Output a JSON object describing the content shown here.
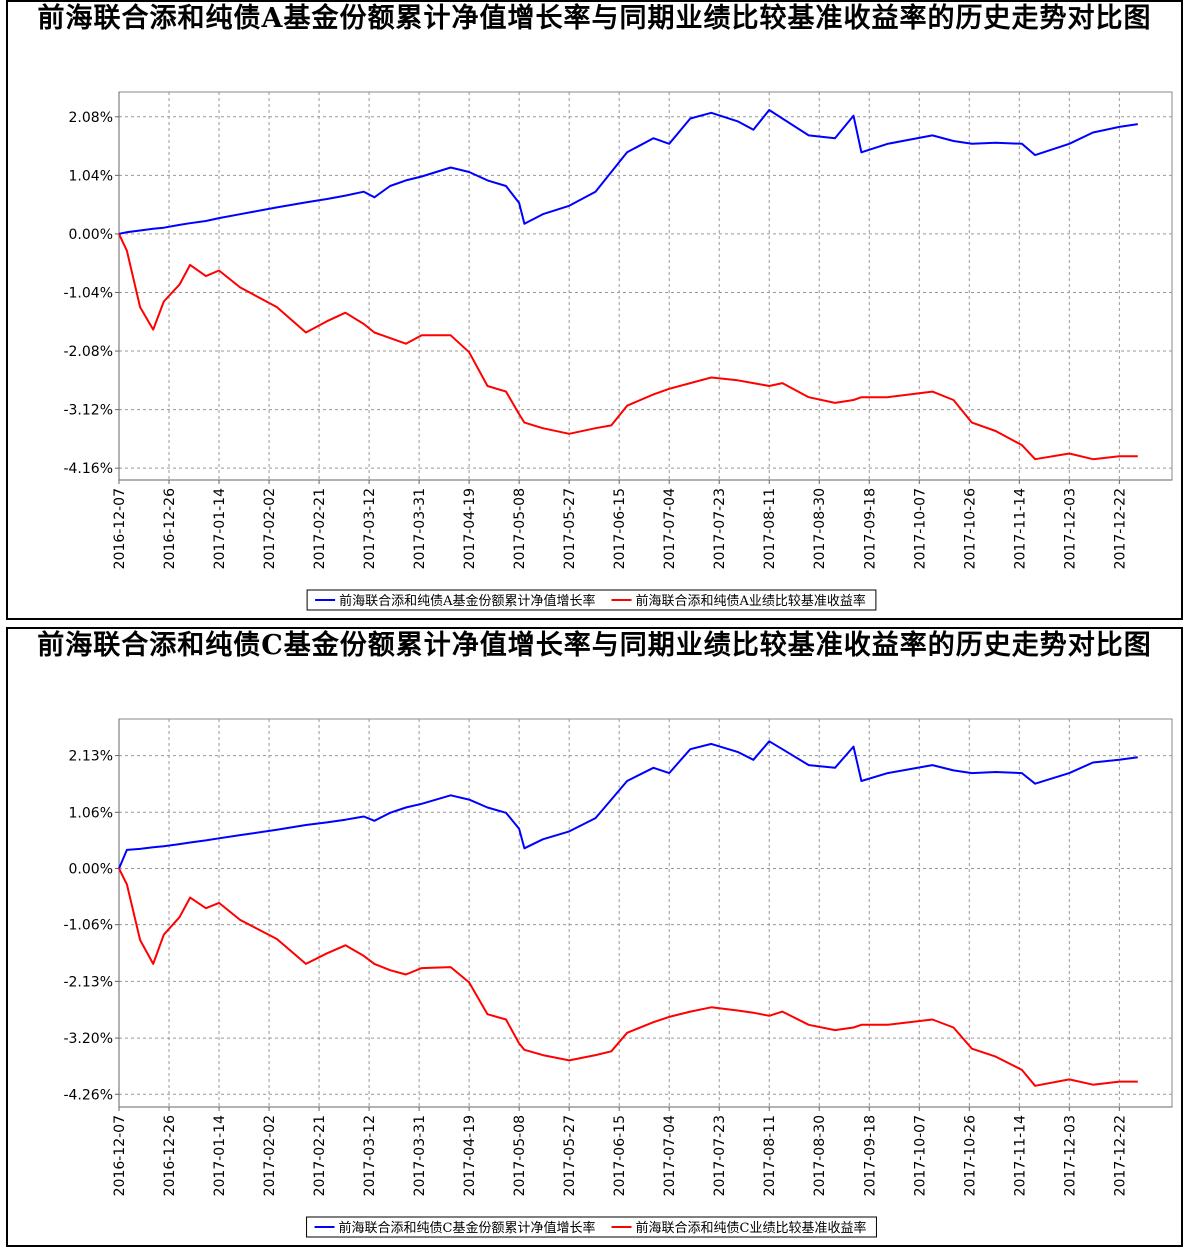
{
  "chart_data": [
    {
      "type": "line",
      "title": "前海联合添和纯债A基金份额累计净值增长率与同期业绩比较基准收益率的历史走势对比图",
      "x": [
        "2016-12-07",
        "2016-12-10",
        "2016-12-15",
        "2016-12-20",
        "2016-12-24",
        "2016-12-30",
        "2017-01-03",
        "2017-01-09",
        "2017-01-14",
        "2017-01-22",
        "2017-02-05",
        "2017-02-16",
        "2017-02-24",
        "2017-03-03",
        "2017-03-10",
        "2017-03-14",
        "2017-03-20",
        "2017-03-26",
        "2017-04-01",
        "2017-04-12",
        "2017-04-19",
        "2017-04-26",
        "2017-05-03",
        "2017-05-08",
        "2017-05-10",
        "2017-05-17",
        "2017-05-27",
        "2017-06-06",
        "2017-06-12",
        "2017-06-18",
        "2017-06-28",
        "2017-07-04",
        "2017-07-12",
        "2017-07-20",
        "2017-07-30",
        "2017-08-05",
        "2017-08-11",
        "2017-08-16",
        "2017-08-26",
        "2017-09-05",
        "2017-09-12",
        "2017-09-15",
        "2017-09-25",
        "2017-10-12",
        "2017-10-20",
        "2017-10-27",
        "2017-11-05",
        "2017-11-15",
        "2017-11-20",
        "2017-12-03",
        "2017-12-12",
        "2017-12-22",
        "2017-12-29"
      ],
      "series": [
        {
          "name": "前海联合添和纯债A基金份额累计净值增长率",
          "color": "#0000ff",
          "values": [
            0.0,
            0.03,
            0.06,
            0.09,
            0.11,
            0.16,
            0.19,
            0.23,
            0.28,
            0.35,
            0.47,
            0.56,
            0.62,
            0.68,
            0.75,
            0.65,
            0.85,
            0.95,
            1.02,
            1.18,
            1.1,
            0.95,
            0.85,
            0.55,
            0.18,
            0.35,
            0.5,
            0.75,
            1.1,
            1.45,
            1.7,
            1.6,
            2.05,
            2.15,
            2.0,
            1.85,
            2.2,
            2.05,
            1.75,
            1.7,
            2.1,
            1.45,
            1.6,
            1.75,
            1.65,
            1.6,
            1.62,
            1.6,
            1.4,
            1.6,
            1.8,
            1.9,
            1.95
          ]
        },
        {
          "name": "前海联合添和纯债A业绩比较基准收益率",
          "color": "#ff0000",
          "values": [
            0.0,
            -0.3,
            -1.3,
            -1.7,
            -1.2,
            -0.9,
            -0.55,
            -0.75,
            -0.65,
            -0.95,
            -1.3,
            -1.75,
            -1.55,
            -1.4,
            -1.6,
            -1.75,
            -1.85,
            -1.95,
            -1.8,
            -1.8,
            -2.1,
            -2.7,
            -2.8,
            -3.2,
            -3.35,
            -3.45,
            -3.55,
            -3.45,
            -3.4,
            -3.05,
            -2.85,
            -2.75,
            -2.65,
            -2.55,
            -2.6,
            -2.65,
            -2.7,
            -2.65,
            -2.9,
            -3.0,
            -2.95,
            -2.9,
            -2.9,
            -2.8,
            -2.95,
            -3.35,
            -3.5,
            -3.75,
            -4.0,
            -3.9,
            -4.0,
            -3.95,
            -3.95
          ]
        }
      ],
      "xlim": [
        "2016-12-07",
        "2018-01-11"
      ],
      "xticks": [
        "2016-12-07",
        "2016-12-26",
        "2017-01-14",
        "2017-02-02",
        "2017-02-21",
        "2017-03-12",
        "2017-03-31",
        "2017-04-19",
        "2017-05-08",
        "2017-05-27",
        "2017-06-15",
        "2017-07-04",
        "2017-07-23",
        "2017-08-11",
        "2017-08-30",
        "2017-09-18",
        "2017-10-07",
        "2017-10-26",
        "2017-11-14",
        "2017-12-03",
        "2017-12-22"
      ],
      "ylim": [
        -4.37,
        2.52
      ],
      "yticks": [
        {
          "value": 2.08,
          "label": "2.08%"
        },
        {
          "value": 1.04,
          "label": "1.04%"
        },
        {
          "value": 0,
          "label": "0.00%"
        },
        {
          "value": -1.04,
          "label": "-1.04%"
        },
        {
          "value": -2.08,
          "label": "-2.08%"
        },
        {
          "value": -3.12,
          "label": "-3.12%"
        },
        {
          "value": -4.16,
          "label": "-4.16%"
        }
      ],
      "grid": true,
      "legend": "bottom"
    },
    {
      "type": "line",
      "title": "前海联合添和纯债C基金份额累计净值增长率与同期业绩比较基准收益率的历史走势对比图",
      "x": [
        "2016-12-07",
        "2016-12-10",
        "2016-12-15",
        "2016-12-20",
        "2016-12-24",
        "2016-12-30",
        "2017-01-03",
        "2017-01-09",
        "2017-01-14",
        "2017-01-22",
        "2017-02-05",
        "2017-02-16",
        "2017-02-24",
        "2017-03-03",
        "2017-03-10",
        "2017-03-14",
        "2017-03-20",
        "2017-03-26",
        "2017-04-01",
        "2017-04-12",
        "2017-04-19",
        "2017-04-26",
        "2017-05-03",
        "2017-05-08",
        "2017-05-10",
        "2017-05-17",
        "2017-05-27",
        "2017-06-06",
        "2017-06-12",
        "2017-06-18",
        "2017-06-28",
        "2017-07-04",
        "2017-07-12",
        "2017-07-20",
        "2017-07-30",
        "2017-08-05",
        "2017-08-11",
        "2017-08-16",
        "2017-08-26",
        "2017-09-05",
        "2017-09-12",
        "2017-09-15",
        "2017-09-25",
        "2017-10-12",
        "2017-10-20",
        "2017-10-27",
        "2017-11-05",
        "2017-11-15",
        "2017-11-20",
        "2017-12-03",
        "2017-12-12",
        "2017-12-22",
        "2017-12-29"
      ],
      "series": [
        {
          "name": "前海联合添和纯债C基金份额累计净值增长率",
          "color": "#0000ff",
          "values": [
            0.0,
            0.35,
            0.37,
            0.4,
            0.42,
            0.46,
            0.49,
            0.53,
            0.57,
            0.63,
            0.73,
            0.82,
            0.87,
            0.92,
            0.98,
            0.9,
            1.05,
            1.15,
            1.22,
            1.38,
            1.3,
            1.15,
            1.05,
            0.75,
            0.38,
            0.55,
            0.7,
            0.95,
            1.3,
            1.65,
            1.9,
            1.8,
            2.25,
            2.35,
            2.2,
            2.05,
            2.4,
            2.25,
            1.95,
            1.9,
            2.3,
            1.65,
            1.8,
            1.95,
            1.85,
            1.8,
            1.82,
            1.8,
            1.6,
            1.8,
            2.0,
            2.05,
            2.1
          ]
        },
        {
          "name": "前海联合添和纯债C业绩比较基准收益率",
          "color": "#ff0000",
          "values": [
            0.0,
            -0.3,
            -1.35,
            -1.8,
            -1.25,
            -0.92,
            -0.55,
            -0.75,
            -0.65,
            -0.97,
            -1.33,
            -1.8,
            -1.6,
            -1.45,
            -1.65,
            -1.8,
            -1.92,
            -2.0,
            -1.88,
            -1.86,
            -2.15,
            -2.75,
            -2.85,
            -3.3,
            -3.42,
            -3.52,
            -3.62,
            -3.52,
            -3.45,
            -3.1,
            -2.9,
            -2.8,
            -2.7,
            -2.62,
            -2.68,
            -2.72,
            -2.78,
            -2.7,
            -2.95,
            -3.05,
            -3.0,
            -2.95,
            -2.95,
            -2.85,
            -3.0,
            -3.4,
            -3.55,
            -3.8,
            -4.1,
            -3.98,
            -4.08,
            -4.02,
            -4.02
          ]
        }
      ],
      "xlim": [
        "2016-12-07",
        "2018-01-11"
      ],
      "xticks": [
        "2016-12-07",
        "2016-12-26",
        "2017-01-14",
        "2017-02-02",
        "2017-02-21",
        "2017-03-12",
        "2017-03-31",
        "2017-04-19",
        "2017-05-08",
        "2017-05-27",
        "2017-06-15",
        "2017-07-04",
        "2017-07-23",
        "2017-08-11",
        "2017-08-30",
        "2017-09-18",
        "2017-10-07",
        "2017-10-26",
        "2017-11-14",
        "2017-12-03",
        "2017-12-22"
      ],
      "ylim": [
        -4.5,
        2.82
      ],
      "yticks": [
        {
          "value": 2.13,
          "label": "2.13%"
        },
        {
          "value": 1.06,
          "label": "1.06%"
        },
        {
          "value": 0,
          "label": "0.00%"
        },
        {
          "value": -1.06,
          "label": "-1.06%"
        },
        {
          "value": -2.13,
          "label": "-2.13%"
        },
        {
          "value": -3.2,
          "label": "-3.20%"
        },
        {
          "value": -4.26,
          "label": "-4.26%"
        }
      ],
      "grid": true,
      "legend": "bottom"
    }
  ]
}
